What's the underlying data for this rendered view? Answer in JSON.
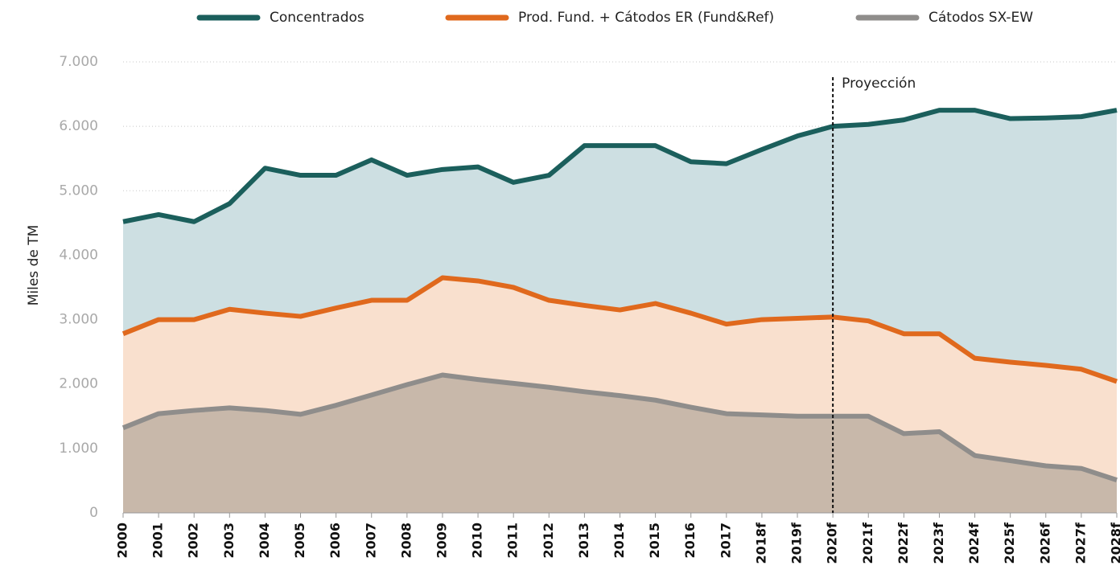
{
  "chart_data": {
    "type": "area",
    "categories": [
      "2000",
      "2001",
      "2002",
      "2003",
      "2004",
      "2005",
      "2006",
      "2007",
      "2008",
      "2009",
      "2010",
      "2011",
      "2012",
      "2013",
      "2014",
      "2015",
      "2016",
      "2017",
      "2018f",
      "2019f",
      "2020f",
      "2021f",
      "2022f",
      "2023f",
      "2024f",
      "2025f",
      "2026f",
      "2027f",
      "2028f"
    ],
    "series": [
      {
        "name": "Concentrados",
        "color": "#1b5f5c",
        "fill": "#cddfe2",
        "values": [
          4520,
          4630,
          4520,
          4800,
          5350,
          5240,
          5240,
          5480,
          5240,
          5330,
          5370,
          5130,
          5240,
          5700,
          5700,
          5700,
          5450,
          5420,
          5640,
          5850,
          6000,
          6030,
          6100,
          6250,
          6250,
          6120,
          6130,
          6150,
          6250
        ]
      },
      {
        "name": "Prod. Fund. + Cátodos ER (Fund&Ref)",
        "color": "#e0691d",
        "fill": "#f9e0ce",
        "values": [
          2780,
          3000,
          3000,
          3160,
          3100,
          3050,
          3180,
          3300,
          3300,
          3650,
          3600,
          3500,
          3300,
          3220,
          3150,
          3250,
          3100,
          2930,
          3000,
          3020,
          3040,
          2980,
          2780,
          2780,
          2400,
          2340,
          2290,
          2230,
          2040
        ]
      },
      {
        "name": "Cátodos SX-EW",
        "color": "#8f8d8b",
        "fill": "#c8b8aa",
        "values": [
          1320,
          1540,
          1590,
          1630,
          1590,
          1530,
          1670,
          1830,
          1990,
          2140,
          2070,
          2010,
          1950,
          1880,
          1820,
          1750,
          1640,
          1540,
          1520,
          1500,
          1500,
          1500,
          1230,
          1260,
          890,
          810,
          730,
          690,
          510
        ]
      }
    ],
    "ylabel": "Miles de TM",
    "ylim": [
      0,
      7000
    ],
    "yticks": [
      0,
      {
        "value": 1000,
        "label": "1.000"
      },
      {
        "value": 2000,
        "label": "2.000"
      },
      {
        "value": 3000,
        "label": "3.000"
      },
      {
        "value": 4000,
        "label": "4.000"
      },
      {
        "value": 5000,
        "label": "5.000"
      },
      {
        "value": 6000,
        "label": "6.000"
      },
      {
        "value": 7000,
        "label": "7.000"
      }
    ],
    "grid": true,
    "legend": "top",
    "annotation": {
      "text": "Proyección",
      "x": "2020f"
    }
  }
}
